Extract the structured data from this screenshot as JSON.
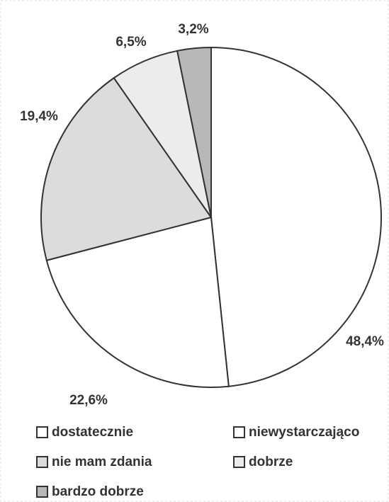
{
  "chart_data": {
    "type": "pie",
    "categories": [
      "dostatecznie",
      "niewystarczająco",
      "nie mam zdania",
      "dobrze",
      "bardzo dobrze"
    ],
    "values": [
      48.4,
      22.6,
      19.4,
      6.5,
      3.2
    ],
    "value_labels": [
      "48,4%",
      "22,6%",
      "19,4%",
      "6,5%",
      "3,2%"
    ],
    "colors": [
      "#ffffff",
      "#ffffff",
      "#dcdcdc",
      "#ececec",
      "#b8b8b8"
    ]
  }
}
